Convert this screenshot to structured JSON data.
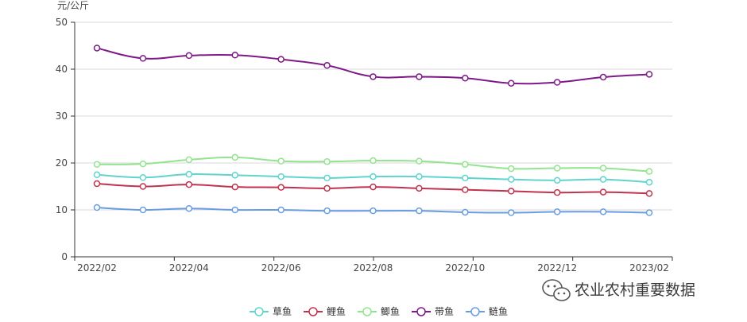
{
  "chart_data": {
    "type": "line",
    "ylabel": "元/公斤",
    "ylim": [
      0,
      50
    ],
    "yticks": [
      0,
      10,
      20,
      30,
      40,
      50
    ],
    "x": [
      "2022/02",
      "2022/03",
      "2022/04",
      "2022/05",
      "2022/06",
      "2022/07",
      "2022/08",
      "2022/09",
      "2022/10",
      "2022/11",
      "2022/12",
      "2023/01",
      "2023/02"
    ],
    "xtick_labels": [
      "2022/02",
      "2022/04",
      "2022/06",
      "2022/08",
      "2022/10",
      "2022/12",
      "2023/02"
    ],
    "grid": "horizontal",
    "legend_position": "bottom",
    "series": [
      {
        "name": "草鱼",
        "color": "#5fd4cf",
        "values": [
          17.5,
          16.9,
          17.6,
          17.4,
          17.1,
          16.8,
          17.1,
          17.1,
          16.8,
          16.5,
          16.3,
          16.5,
          15.9
        ]
      },
      {
        "name": "鲤鱼",
        "color": "#c0334f",
        "values": [
          15.6,
          15.0,
          15.4,
          14.9,
          14.8,
          14.6,
          14.9,
          14.6,
          14.3,
          14.0,
          13.7,
          13.8,
          13.5
        ]
      },
      {
        "name": "鲫鱼",
        "color": "#92e48e",
        "values": [
          19.7,
          19.8,
          20.7,
          21.2,
          20.4,
          20.3,
          20.5,
          20.4,
          19.7,
          18.8,
          18.9,
          18.9,
          18.2
        ]
      },
      {
        "name": "带鱼",
        "color": "#7d1a88",
        "values": [
          44.5,
          42.3,
          42.9,
          43.0,
          42.1,
          40.8,
          38.4,
          38.4,
          38.1,
          37.0,
          37.2,
          38.3,
          38.9
        ]
      },
      {
        "name": "鲢鱼",
        "color": "#6a9de0",
        "values": [
          10.5,
          10.0,
          10.3,
          10.0,
          10.0,
          9.8,
          9.8,
          9.8,
          9.5,
          9.4,
          9.6,
          9.6,
          9.4
        ]
      }
    ]
  },
  "watermark": {
    "icon": "wechat-icon",
    "text": "农业农村重要数据"
  }
}
